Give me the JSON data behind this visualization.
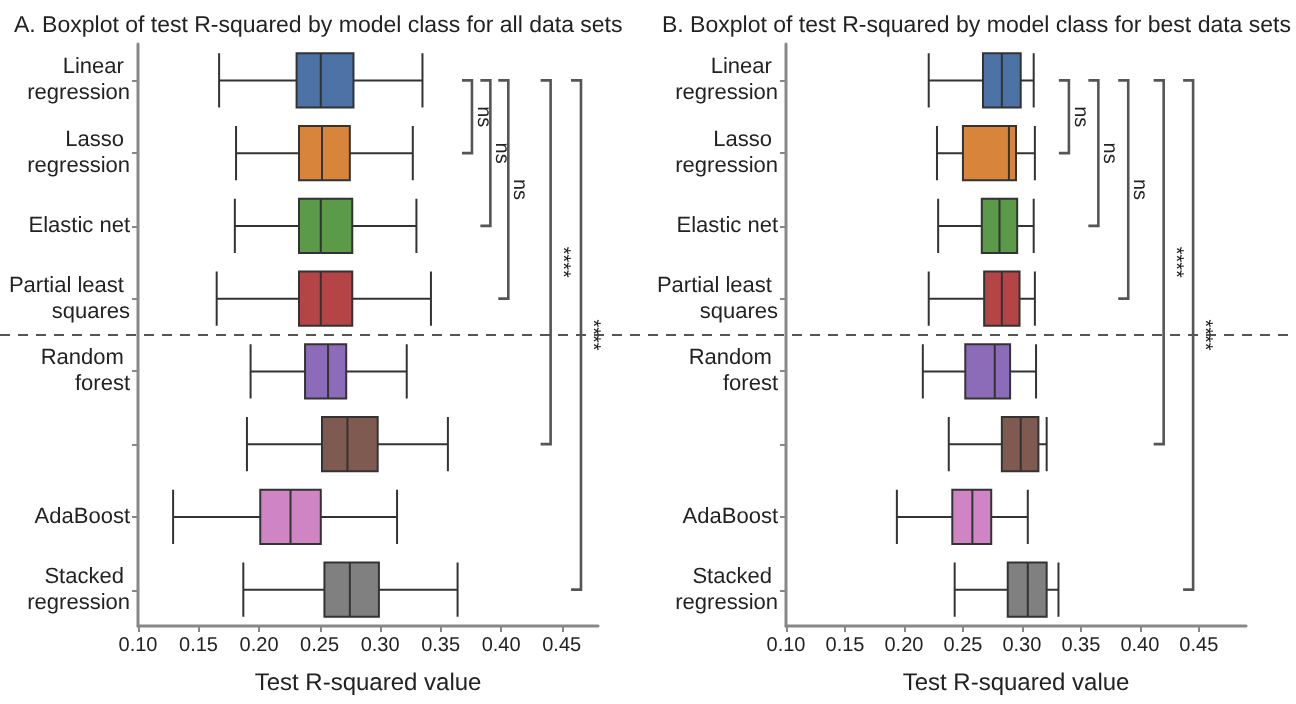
{
  "chart_data": [
    {
      "type": "box",
      "title": "A. Boxplot of test R-squared by model class for all data sets",
      "xlabel": "Test R-squared value",
      "orientation": "horizontal",
      "categories": [
        "Linear regression",
        "Lasso regression",
        "Elastic net",
        "Partial least squares",
        "Random forest",
        null,
        "AdaBoost",
        "Stacked regression"
      ],
      "colors": [
        "#4c72a6",
        "#d8843a",
        "#5a9a48",
        "#b44445",
        "#8c6bb8",
        "#7f5a50",
        "#cf84c3",
        "#808080"
      ],
      "boxes": [
        {
          "low": 0.167,
          "q1": 0.231,
          "median": 0.251,
          "q3": 0.278,
          "high": 0.335
        },
        {
          "low": 0.181,
          "q1": 0.233,
          "median": 0.252,
          "q3": 0.275,
          "high": 0.327
        },
        {
          "low": 0.18,
          "q1": 0.233,
          "median": 0.251,
          "q3": 0.277,
          "high": 0.33
        },
        {
          "low": 0.165,
          "q1": 0.233,
          "median": 0.251,
          "q3": 0.277,
          "high": 0.342
        },
        {
          "low": 0.193,
          "q1": 0.238,
          "median": 0.257,
          "q3": 0.272,
          "high": 0.322
        },
        {
          "low": 0.19,
          "q1": 0.252,
          "median": 0.273,
          "q3": 0.298,
          "high": 0.356
        },
        {
          "low": 0.129,
          "q1": 0.201,
          "median": 0.226,
          "q3": 0.251,
          "high": 0.314
        },
        {
          "low": 0.187,
          "q1": 0.254,
          "median": 0.275,
          "q3": 0.299,
          "high": 0.364
        }
      ],
      "xlim": [
        0.1,
        0.48
      ],
      "xticks": [
        {
          "value": 0.1,
          "label": "0.10"
        },
        {
          "value": 0.15,
          "label": "0.15"
        },
        {
          "value": 0.2,
          "label": "0.20"
        },
        {
          "value": 0.25,
          "label": "0.25"
        },
        {
          "value": 0.3,
          "label": "0.30"
        },
        {
          "value": 0.35,
          "label": "0.35"
        },
        {
          "value": 0.4,
          "label": "0.40"
        },
        {
          "value": 0.45,
          "label": "0.45"
        }
      ],
      "annotations": [
        "ns",
        "ns",
        "ns",
        "****",
        "****"
      ]
    },
    {
      "type": "box",
      "title": "B. Boxplot of test R-squared by model class for best data sets",
      "xlabel": "Test R-squared value",
      "orientation": "horizontal",
      "categories": [
        "Linear regression",
        "Lasso regression",
        "Elastic net",
        "Partial least squares",
        "Random forest",
        null,
        "AdaBoost",
        "Stacked regression"
      ],
      "colors": [
        "#4c72a6",
        "#d8843a",
        "#5a9a48",
        "#b44445",
        "#8c6bb8",
        "#7f5a50",
        "#cf84c3",
        "#808080"
      ],
      "boxes": [
        {
          "low": 0.221,
          "q1": 0.267,
          "median": 0.283,
          "q3": 0.299,
          "high": 0.31
        },
        {
          "low": 0.228,
          "q1": 0.25,
          "median": 0.289,
          "q3": 0.295,
          "high": 0.311
        },
        {
          "low": 0.229,
          "q1": 0.266,
          "median": 0.281,
          "q3": 0.296,
          "high": 0.31
        },
        {
          "low": 0.221,
          "q1": 0.268,
          "median": 0.283,
          "q3": 0.298,
          "high": 0.311
        },
        {
          "low": 0.216,
          "q1": 0.252,
          "median": 0.277,
          "q3": 0.29,
          "high": 0.312
        },
        {
          "low": 0.238,
          "q1": 0.283,
          "median": 0.299,
          "q3": 0.314,
          "high": 0.321
        },
        {
          "low": 0.194,
          "q1": 0.241,
          "median": 0.258,
          "q3": 0.274,
          "high": 0.305
        },
        {
          "low": 0.243,
          "q1": 0.288,
          "median": 0.305,
          "q3": 0.321,
          "high": 0.331
        }
      ],
      "xlim": [
        0.1,
        0.49
      ],
      "xticks": [
        {
          "value": 0.1,
          "label": "0.10"
        },
        {
          "value": 0.15,
          "label": "0.15"
        },
        {
          "value": 0.2,
          "label": "0.20"
        },
        {
          "value": 0.25,
          "label": "0.25"
        },
        {
          "value": 0.3,
          "label": "0.30"
        },
        {
          "value": 0.35,
          "label": "0.35"
        },
        {
          "value": 0.4,
          "label": "0.40"
        },
        {
          "value": 0.45,
          "label": "0.45"
        }
      ],
      "annotations": [
        "ns",
        "ns",
        "ns",
        "****",
        "****"
      ]
    }
  ]
}
